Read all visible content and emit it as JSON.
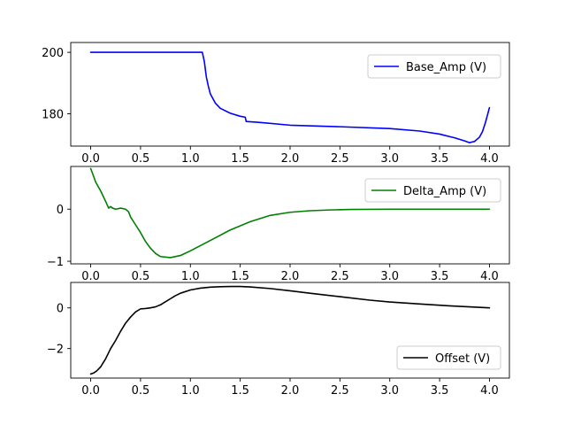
{
  "chart_data": [
    {
      "type": "line",
      "x_ticks": [
        0.0,
        0.5,
        1.0,
        1.5,
        2.0,
        2.5,
        3.0,
        3.5,
        4.0
      ],
      "x_tick_labels": [
        "0.0",
        "0.5",
        "1.0",
        "1.5",
        "2.0",
        "2.5",
        "3.0",
        "3.5",
        "4.0"
      ],
      "xlim": [
        -0.2,
        4.2
      ],
      "ylim": [
        169.5,
        203.2
      ],
      "y_ticks": [
        180,
        200
      ],
      "y_tick_labels": [
        "180",
        "200"
      ],
      "legend_position": "upper right",
      "grid": false,
      "series": [
        {
          "name": "Base_Amp (V)",
          "color": "#0000ff",
          "x": [
            0.0,
            0.3,
            0.6,
            0.9,
            1.12,
            1.14,
            1.16,
            1.18,
            1.2,
            1.25,
            1.3,
            1.4,
            1.5,
            1.55,
            1.56,
            1.7,
            2.0,
            2.5,
            3.0,
            3.3,
            3.5,
            3.65,
            3.75,
            3.8,
            3.82,
            3.85,
            3.9,
            3.93,
            3.96,
            4.0
          ],
          "y": [
            200.0,
            200.0,
            200.0,
            200.0,
            200.0,
            197.0,
            192.0,
            189.0,
            186.5,
            183.5,
            181.8,
            180.2,
            179.2,
            178.9,
            177.5,
            177.2,
            176.3,
            175.8,
            175.2,
            174.4,
            173.4,
            172.2,
            171.2,
            170.6,
            170.8,
            171.0,
            172.4,
            174.2,
            177.2,
            182.0
          ]
        }
      ]
    },
    {
      "type": "line",
      "x_ticks": [
        0.0,
        0.5,
        1.0,
        1.5,
        2.0,
        2.5,
        3.0,
        3.5,
        4.0
      ],
      "x_tick_labels": [
        "0.0",
        "0.5",
        "1.0",
        "1.5",
        "2.0",
        "2.5",
        "3.0",
        "3.5",
        "4.0"
      ],
      "xlim": [
        -0.2,
        4.2
      ],
      "ylim": [
        -1.05,
        0.82
      ],
      "y_ticks": [
        -1,
        0
      ],
      "y_tick_labels": [
        "−1",
        "0"
      ],
      "legend_position": "upper right",
      "grid": false,
      "series": [
        {
          "name": "Delta_Amp (V)",
          "color": "#008000",
          "x": [
            0.0,
            0.02,
            0.05,
            0.1,
            0.15,
            0.18,
            0.2,
            0.22,
            0.25,
            0.3,
            0.35,
            0.38,
            0.4,
            0.45,
            0.5,
            0.55,
            0.6,
            0.65,
            0.7,
            0.8,
            0.9,
            1.0,
            1.2,
            1.4,
            1.6,
            1.8,
            2.0,
            2.2,
            2.4,
            2.6,
            3.0,
            3.5,
            4.0
          ],
          "y": [
            0.78,
            0.68,
            0.52,
            0.35,
            0.15,
            0.02,
            0.05,
            0.02,
            0.0,
            0.02,
            0.0,
            -0.05,
            -0.15,
            -0.3,
            -0.45,
            -0.62,
            -0.75,
            -0.85,
            -0.91,
            -0.93,
            -0.89,
            -0.8,
            -0.6,
            -0.4,
            -0.24,
            -0.12,
            -0.06,
            -0.03,
            -0.015,
            -0.005,
            0.0,
            0.0,
            0.0
          ]
        }
      ]
    },
    {
      "type": "line",
      "x_ticks": [
        0.0,
        0.5,
        1.0,
        1.5,
        2.0,
        2.5,
        3.0,
        3.5,
        4.0
      ],
      "x_tick_labels": [
        "0.0",
        "0.5",
        "1.0",
        "1.5",
        "2.0",
        "2.5",
        "3.0",
        "3.5",
        "4.0"
      ],
      "xlim": [
        -0.2,
        4.2
      ],
      "ylim": [
        -3.45,
        1.25
      ],
      "y_ticks": [
        -2,
        0
      ],
      "y_tick_labels": [
        "−2",
        "0"
      ],
      "legend_position": "lower right",
      "grid": false,
      "series": [
        {
          "name": "Offset (V)",
          "color": "#000000",
          "x": [
            0.0,
            0.03,
            0.06,
            0.1,
            0.15,
            0.2,
            0.25,
            0.3,
            0.35,
            0.4,
            0.45,
            0.5,
            0.55,
            0.6,
            0.65,
            0.7,
            0.75,
            0.8,
            0.85,
            0.9,
            1.0,
            1.1,
            1.2,
            1.3,
            1.4,
            1.5,
            1.6,
            1.8,
            2.0,
            2.2,
            2.5,
            2.8,
            3.0,
            3.3,
            3.6,
            3.8,
            4.0
          ],
          "y": [
            -3.25,
            -3.2,
            -3.1,
            -2.9,
            -2.5,
            -2.0,
            -1.6,
            -1.15,
            -0.75,
            -0.45,
            -0.2,
            -0.05,
            -0.03,
            0.0,
            0.05,
            0.15,
            0.3,
            0.45,
            0.6,
            0.72,
            0.88,
            0.97,
            1.02,
            1.04,
            1.05,
            1.05,
            1.03,
            0.95,
            0.84,
            0.72,
            0.55,
            0.38,
            0.29,
            0.19,
            0.1,
            0.05,
            0.0
          ]
        }
      ]
    }
  ]
}
